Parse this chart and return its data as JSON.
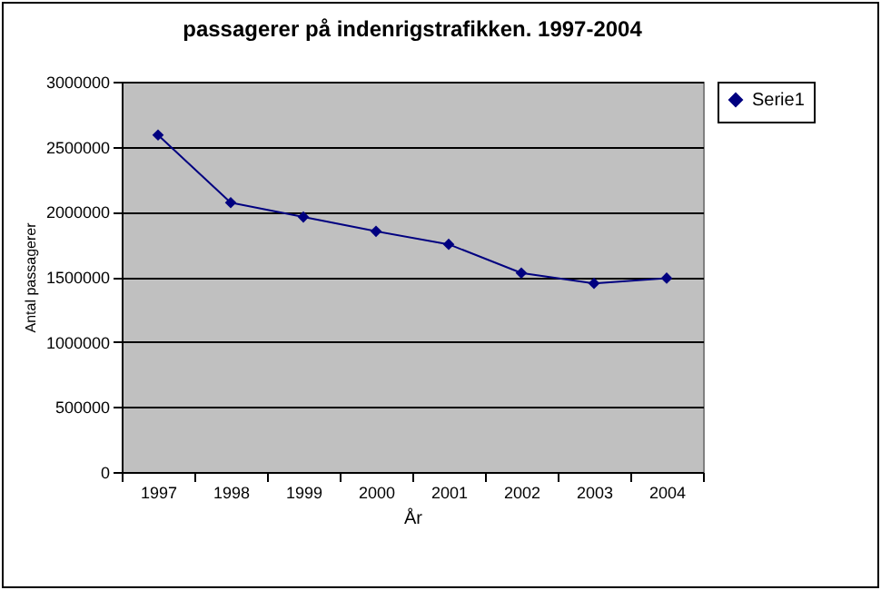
{
  "chart_data": {
    "type": "line",
    "title": "passagerer på indenrigstrafikken. 1997-2004",
    "xlabel": "År",
    "ylabel": "Antal passagerer",
    "categories": [
      "1997",
      "1998",
      "1999",
      "2000",
      "2001",
      "2002",
      "2003",
      "2004"
    ],
    "series": [
      {
        "name": "Serie1",
        "color": "#000080",
        "values": [
          2590000,
          2070000,
          1960000,
          1850000,
          1750000,
          1530000,
          1450000,
          1490000
        ]
      }
    ],
    "ylim": [
      0,
      3000000
    ],
    "yticks": [
      0,
      500000,
      1000000,
      1500000,
      2000000,
      2500000,
      3000000
    ],
    "grid": "y",
    "legend": "right",
    "marker": "diamond",
    "line_style": "solid"
  }
}
